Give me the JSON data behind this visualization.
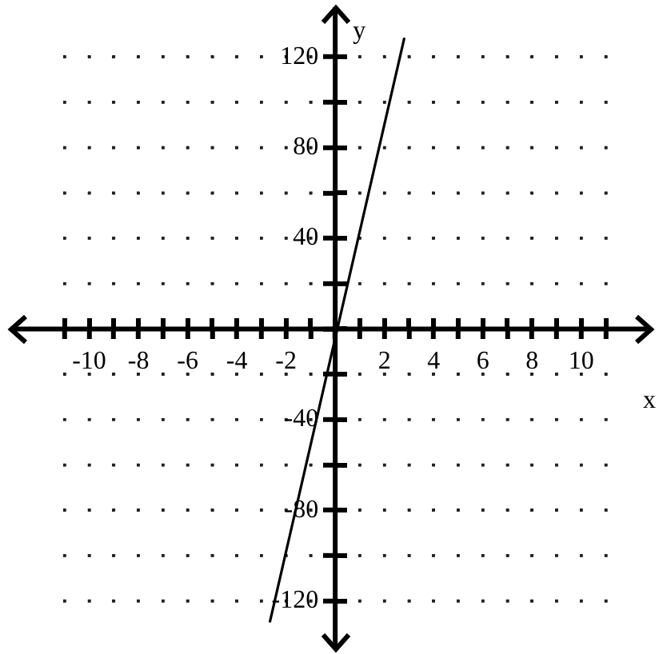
{
  "chart_data": {
    "type": "line",
    "xlabel": "x",
    "ylabel": "y",
    "x": [
      -2.65,
      2.8
    ],
    "values": [
      -129,
      128
    ],
    "color": "#000000",
    "xlim": [
      -13.3,
      12.9
    ],
    "ylim": [
      -142,
      143
    ],
    "xticks": [
      {
        "value": -11,
        "label": null
      },
      -10,
      {
        "value": -9,
        "label": null
      },
      -8,
      {
        "value": -7,
        "label": null
      },
      -6,
      {
        "value": -5,
        "label": null
      },
      -4,
      {
        "value": -3,
        "label": null
      },
      -2,
      {
        "value": -1,
        "label": null
      },
      {
        "value": 0,
        "label": null
      },
      {
        "value": 1,
        "label": null
      },
      2,
      {
        "value": 3,
        "label": null
      },
      4,
      {
        "value": 5,
        "label": null
      },
      6,
      {
        "value": 7,
        "label": null
      },
      8,
      {
        "value": 9,
        "label": null
      },
      10,
      {
        "value": 11,
        "label": null
      }
    ],
    "yticks": [
      -120,
      {
        "value": -100,
        "label": null
      },
      -80,
      {
        "value": -60,
        "label": null
      },
      -40,
      {
        "value": -20,
        "label": null
      },
      {
        "value": 0,
        "label": null
      },
      {
        "value": 20,
        "label": null
      },
      40,
      {
        "value": 60,
        "label": null
      },
      80,
      {
        "value": 100,
        "label": null
      },
      120
    ],
    "grid": true
  }
}
